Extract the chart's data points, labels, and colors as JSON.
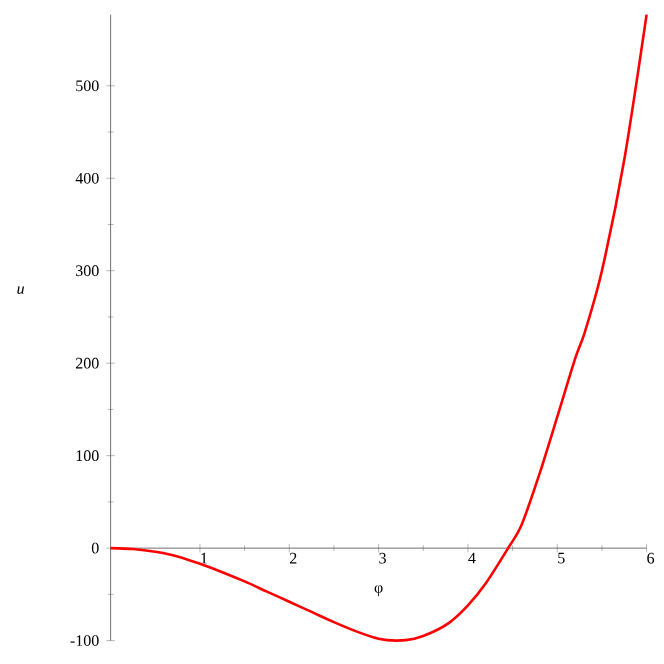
{
  "chart_data": {
    "type": "line",
    "xlabel": "φ",
    "ylabel": "u",
    "x": [
      0,
      0.25,
      0.5,
      0.75,
      1,
      1.25,
      1.5,
      1.75,
      2,
      2.25,
      2.5,
      2.75,
      3,
      3.2,
      3.4,
      3.6,
      3.8,
      4,
      4.2,
      4.45,
      4.6,
      4.8,
      5,
      5.2,
      5.31,
      5.5,
      5.75,
      6
    ],
    "series": [
      {
        "color": "#ff0000",
        "values": [
          0,
          -1,
          -4,
          -9,
          -17,
          -26,
          -36,
          -47,
          -58,
          -69,
          -80,
          -90,
          -98,
          -100,
          -98,
          -91,
          -80,
          -62,
          -38,
          0,
          25,
          80,
          142,
          205,
          234,
          300,
          420,
          577
        ]
      }
    ],
    "xlim": [
      0,
      6
    ],
    "ylim": [
      -100,
      577
    ],
    "xticks": [
      1,
      2,
      3,
      4,
      5,
      6
    ],
    "yticks": [
      -100,
      0,
      100,
      200,
      300,
      400,
      500
    ],
    "grid": false,
    "marker": "none",
    "line_style": "solid"
  }
}
